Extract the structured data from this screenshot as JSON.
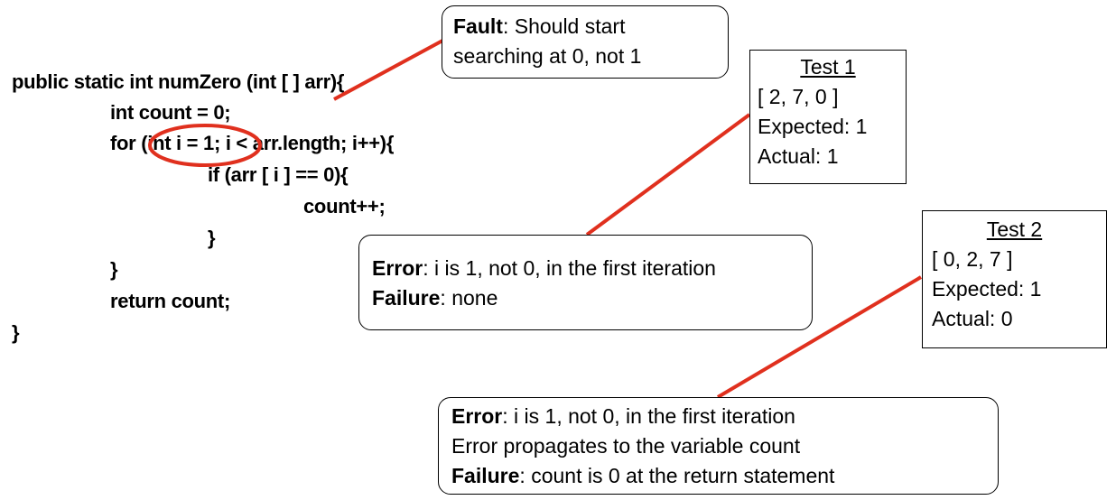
{
  "code": {
    "lines": [
      "public static int numZero (int [ ] arr){",
      "int count = 0;",
      "for (int i = 1; i < arr.length; i++){",
      "if (arr [ i ] == 0){",
      "count++;",
      "}",
      "}",
      "return count;",
      "}"
    ]
  },
  "fault_box": {
    "label": "Fault",
    "text1": ": Should start",
    "text2": "searching at 0, not 1"
  },
  "test1": {
    "title": "Test 1",
    "input": "[ 2, 7, 0 ]",
    "expected": "Expected: 1",
    "actual": "Actual: 1"
  },
  "test2": {
    "title": "Test 2",
    "input": "[ 0, 2, 7 ]",
    "expected": "Expected: 1",
    "actual": "Actual: 0"
  },
  "error_box_1": {
    "error_label": "Error",
    "error_text": ": i is 1, not 0, in the first iteration",
    "failure_label": "Failure",
    "failure_text": ": none"
  },
  "error_box_2": {
    "error_label": "Error",
    "error_text": ":  i is 1, not 0, in the first iteration",
    "propagation_text": "Error propagates to the variable count",
    "failure_label": "Failure",
    "failure_text": ": count is 0 at the return statement"
  },
  "colors": {
    "highlight": "#e0301e",
    "border": "#000000"
  }
}
